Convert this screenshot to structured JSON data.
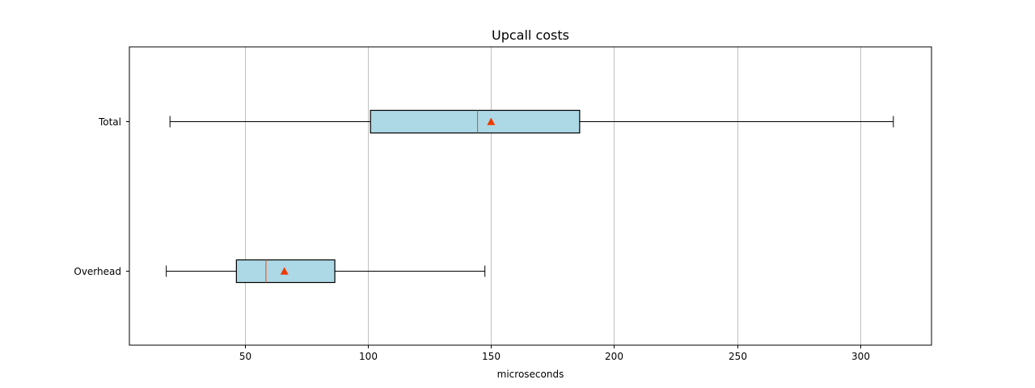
{
  "chart_data": {
    "type": "boxplot",
    "title": "Upcall costs",
    "xlabel": "microseconds",
    "ylabel": "",
    "xlim": [
      3,
      329
    ],
    "xticks": [
      50,
      100,
      150,
      200,
      250,
      300
    ],
    "grid": "x",
    "categories": [
      "Total",
      "Overhead"
    ],
    "series": [
      {
        "category": "Total",
        "whisker_low": 19.5,
        "q1": 101,
        "median": 144.5,
        "mean": 150,
        "q3": 186,
        "whisker_high": 313.5
      },
      {
        "category": "Overhead",
        "whisker_low": 18,
        "q1": 46.5,
        "median": 58.5,
        "mean": 66,
        "q3": 86.5,
        "whisker_high": 147.5
      }
    ],
    "colors": {
      "box_fill": "#add8e6",
      "median": "#ff4500",
      "mean_marker": "#ee3a00",
      "grid": "#b0b0b0",
      "line": "#000000"
    }
  }
}
